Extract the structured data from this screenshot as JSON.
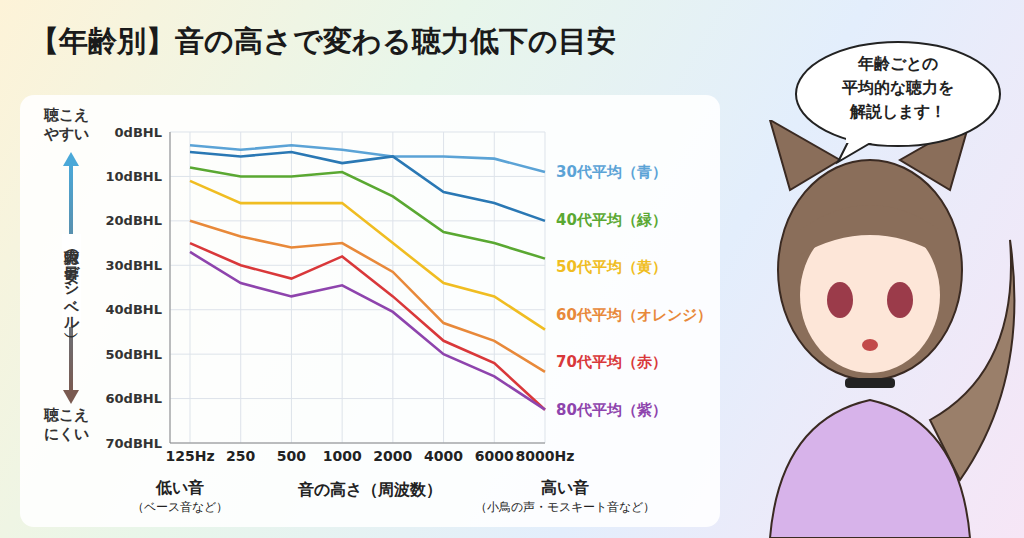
{
  "chart_data": {
    "type": "line",
    "title": "【年齢別】音の高さで変わる聴力低下の目安",
    "y_label": "聴力の目安（デシベル）",
    "y_label_top": [
      "聴こえ",
      "やすい"
    ],
    "y_label_bottom": [
      "聴こえ",
      "にくい"
    ],
    "x_label": "音の高さ（周波数）",
    "x_low_label": "低い音",
    "x_low_note": "（ベース音など）",
    "x_high_label": "高い音",
    "x_high_note": "（小鳥の声・モスキート音など）",
    "categories": [
      "125Hz",
      "250",
      "500",
      "1000",
      "2000",
      "4000",
      "6000",
      "8000Hz"
    ],
    "series": [
      {
        "name": "30代平均（青）",
        "color": "#5ba3d6",
        "values": [
          3,
          4,
          3,
          4,
          5.5,
          5.5,
          6,
          9
        ]
      },
      {
        "color": "#2a78b4",
        "values": [
          4.5,
          5.5,
          4.5,
          7,
          5.5,
          13.5,
          16,
          20
        ]
      },
      {
        "name": "40代平均（緑）",
        "color": "#5aa832",
        "values": [
          8,
          10,
          10,
          9,
          14.5,
          22.5,
          25,
          28.5
        ]
      },
      {
        "name": "50代平均（黄）",
        "color": "#f0bd22",
        "values": [
          11,
          16,
          16,
          16,
          25,
          34,
          37,
          44.5
        ]
      },
      {
        "name": "60代平均（オレンジ）",
        "color": "#e8893a",
        "values": [
          20,
          23.5,
          26,
          25,
          31.5,
          43,
          47,
          54
        ]
      },
      {
        "name": "70代平均（赤）",
        "color": "#d9383a",
        "values": [
          25,
          30,
          33,
          28,
          37,
          47,
          52,
          62.5
        ]
      },
      {
        "name": "80代平均（紫）",
        "color": "#8e44ad",
        "values": [
          27,
          34,
          37,
          34.5,
          40.5,
          50,
          55,
          62.5
        ]
      }
    ],
    "ylim": [
      70,
      0
    ],
    "yticks": [
      {
        "value": 0,
        "label": "0dBHL"
      },
      {
        "value": 10,
        "label": "10dBHL"
      },
      {
        "value": 20,
        "label": "20dBHL"
      },
      {
        "value": 30,
        "label": "30dBHL"
      },
      {
        "value": 40,
        "label": "40dBHL"
      },
      {
        "value": 50,
        "label": "50dBHL"
      },
      {
        "value": 60,
        "label": "60dBHL"
      },
      {
        "value": 70,
        "label": "70dBHL"
      }
    ],
    "grid": true
  },
  "speech_bubble": [
    "年齢ごとの",
    "平均的な聴力を",
    "解説します！"
  ]
}
